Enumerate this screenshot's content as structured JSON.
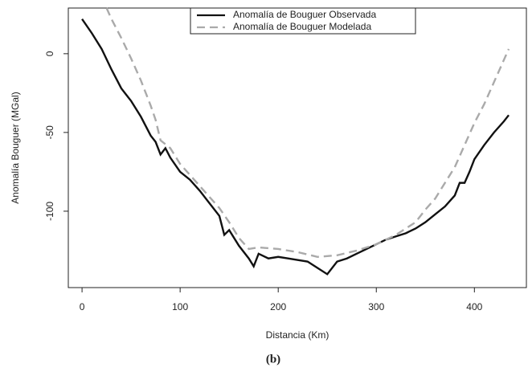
{
  "chart_data": {
    "type": "line",
    "caption": "(b)",
    "x_label": "Distancia (Km)",
    "y_label": "Anomalía Bouguer (MGal)",
    "xlim": [
      -14,
      453
    ],
    "ylim": [
      -148.5,
      29
    ],
    "xticks": [
      0,
      100,
      200,
      300,
      400
    ],
    "yticks": [
      0,
      -50,
      -100
    ],
    "legend": "top",
    "series": [
      {
        "name": "Anomalía de Bouguer Observada",
        "color": "#111111",
        "dash": false,
        "x": [
          0,
          10,
          20,
          30,
          40,
          45,
          50,
          60,
          70,
          75,
          80,
          85,
          90,
          100,
          110,
          120,
          130,
          140,
          145,
          150,
          160,
          170,
          175,
          180,
          190,
          200,
          210,
          220,
          230,
          240,
          250,
          260,
          270,
          280,
          290,
          300,
          310,
          320,
          330,
          340,
          350,
          360,
          370,
          380,
          385,
          390,
          395,
          400,
          410,
          420,
          430,
          435
        ],
        "values": [
          22,
          13,
          3,
          -10,
          -22,
          -26,
          -30,
          -40,
          -52,
          -56,
          -64,
          -60,
          -66,
          -75,
          -80,
          -87,
          -95,
          -103,
          -115,
          -112,
          -122,
          -130,
          -135,
          -127,
          -130,
          -129,
          -130,
          -131,
          -132,
          -136,
          -140,
          -132,
          -130,
          -127,
          -124,
          -121,
          -118,
          -116,
          -114,
          -111,
          -107,
          -102,
          -97,
          -90,
          -82,
          -82,
          -75,
          -67,
          -58,
          -50,
          -43,
          -39
        ]
      },
      {
        "name": "Anomalía de Bouguer Modelada",
        "color": "#aaaaaa",
        "dash": true,
        "x": [
          25,
          30,
          40,
          50,
          60,
          70,
          75,
          80,
          90,
          100,
          120,
          140,
          150,
          160,
          170,
          180,
          200,
          220,
          240,
          260,
          280,
          300,
          320,
          340,
          350,
          360,
          370,
          380,
          390,
          400,
          410,
          420,
          430,
          435
        ],
        "values": [
          29,
          22,
          10,
          -3,
          -17,
          -33,
          -42,
          -55,
          -60,
          -70,
          -84,
          -98,
          -107,
          -117,
          -124,
          -123,
          -124,
          -126,
          -129,
          -128,
          -125,
          -121,
          -115,
          -107,
          -99,
          -92,
          -82,
          -72,
          -58,
          -44,
          -32,
          -18,
          -4,
          3
        ]
      }
    ]
  }
}
